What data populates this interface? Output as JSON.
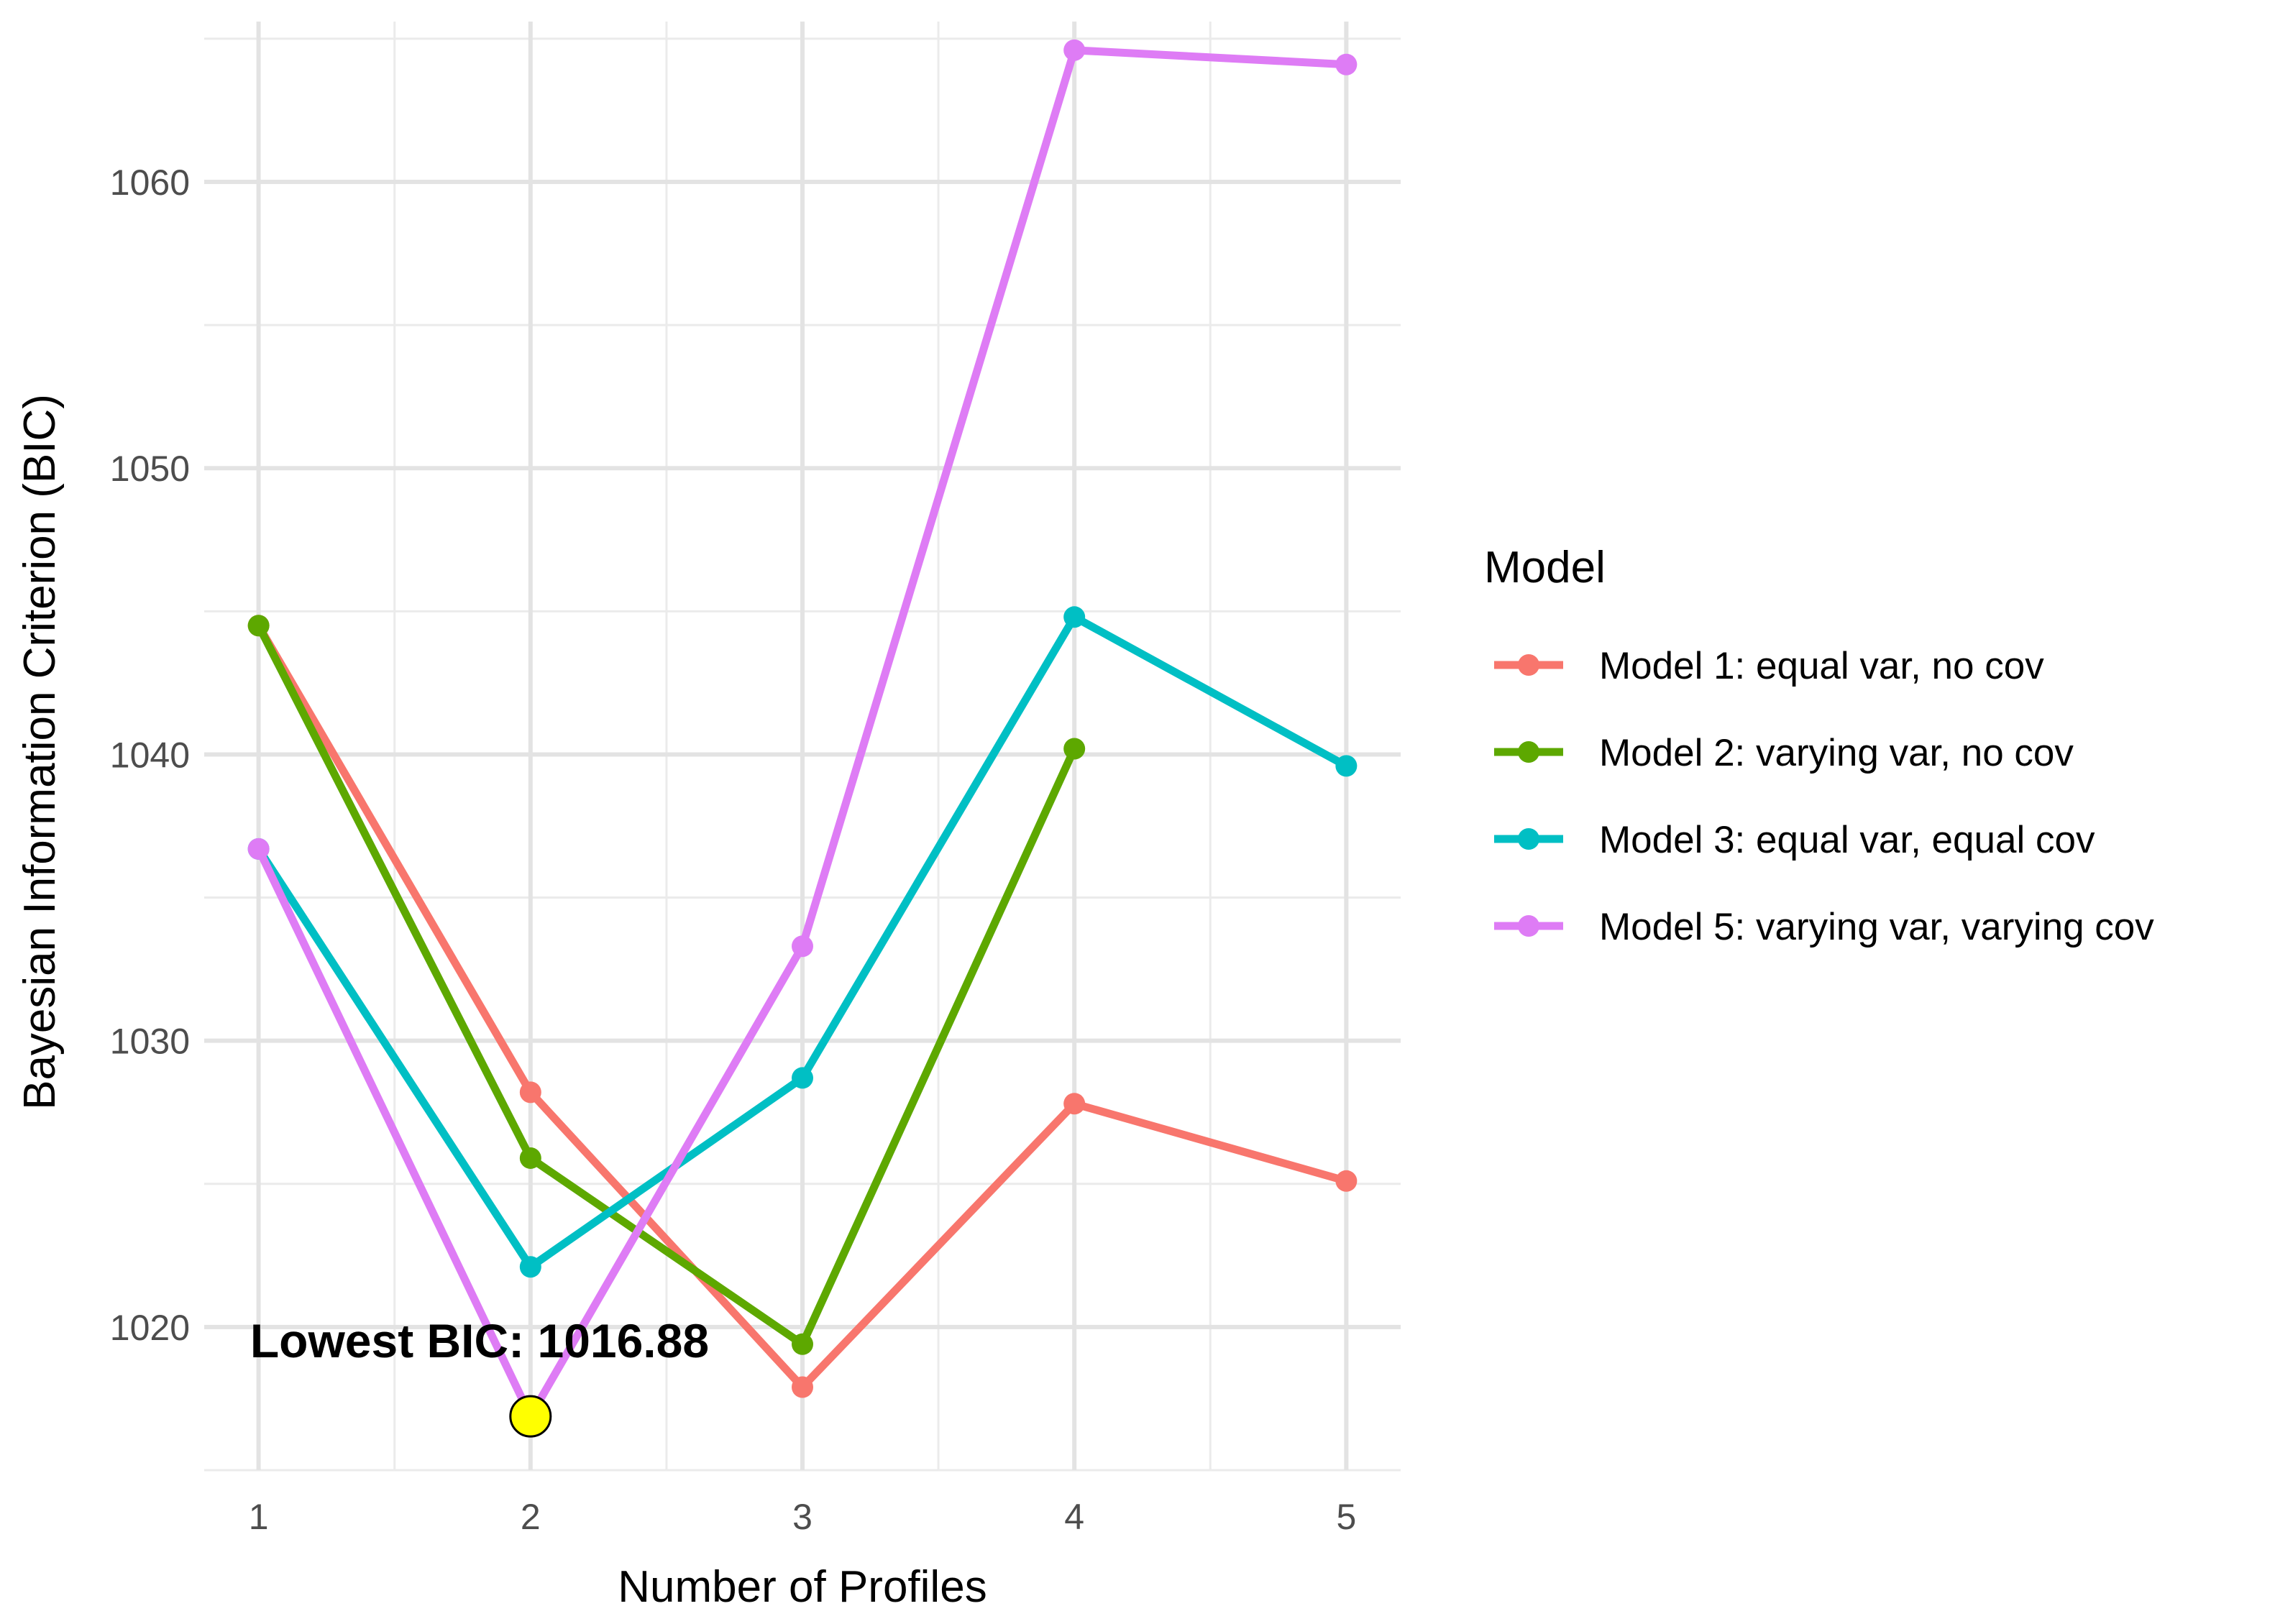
{
  "chart_data": {
    "type": "line",
    "xlabel": "Number of Profiles",
    "ylabel": "Bayesian Information Criterion (BIC)",
    "x": [
      1,
      2,
      3,
      4,
      5
    ],
    "xlim": [
      0.8,
      5.2
    ],
    "ylim": [
      1015,
      1065.6
    ],
    "x_ticks": [
      "1",
      "2",
      "3",
      "4",
      "5"
    ],
    "y_ticks": [
      1020,
      1030,
      1040,
      1050,
      1060
    ],
    "grid": true,
    "legend": {
      "title": "Model",
      "position": "right"
    },
    "series": [
      {
        "name": "Model 1: equal var, no cov",
        "color": "#F8766D",
        "values": [
          1044.5,
          1028.2,
          1017.9,
          1027.8,
          1025.1
        ]
      },
      {
        "name": "Model 2: varying var, no cov",
        "color": "#5DA800",
        "values": [
          1044.5,
          1025.9,
          1019.4,
          1040.2,
          null
        ]
      },
      {
        "name": "Model 3: equal var, equal cov",
        "color": "#00BFC4",
        "values": [
          1036.7,
          1022.1,
          1028.7,
          1044.8,
          1039.6
        ]
      },
      {
        "name": "Model 5: varying var, varying cov",
        "color": "#DE7CF5",
        "values": [
          1036.7,
          1016.88,
          1033.3,
          1064.6,
          1064.1
        ]
      }
    ],
    "highlight": {
      "x": 2,
      "y": 1016.88,
      "color": "#FFFF00",
      "label": "Lowest BIC: 1016.88"
    }
  }
}
